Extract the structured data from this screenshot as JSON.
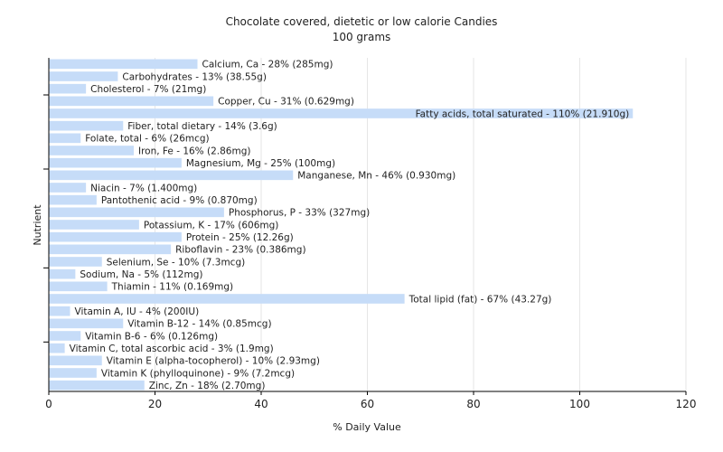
{
  "chart_data": {
    "type": "bar",
    "orientation": "horizontal",
    "title": "Chocolate covered, dietetic or low calorie Candies",
    "subtitle": "100 grams",
    "xlabel": "% Daily Value",
    "ylabel": "Nutrient",
    "xlim": [
      0,
      120
    ],
    "xticks": [
      "0",
      "20",
      "40",
      "60",
      "80",
      "100",
      "120"
    ],
    "grid": true,
    "colors": {
      "bar": "#c6dcf8",
      "grid": "#e6e6e6",
      "axis": "#000000"
    },
    "categories": [
      "Calcium, Ca",
      "Carbohydrates",
      "Cholesterol",
      "Copper, Cu",
      "Fatty acids, total saturated",
      "Fiber, total dietary",
      "Folate, total",
      "Iron, Fe",
      "Magnesium, Mg",
      "Manganese, Mn",
      "Niacin",
      "Pantothenic acid",
      "Phosphorus, P",
      "Potassium, K",
      "Protein",
      "Riboflavin",
      "Selenium, Se",
      "Sodium, Na",
      "Thiamin",
      "Total lipid (fat)",
      "Vitamin A, IU",
      "Vitamin B-12",
      "Vitamin B-6",
      "Vitamin C, total ascorbic acid",
      "Vitamin E (alpha-tocopherol)",
      "Vitamin K (phylloquinone)",
      "Zinc, Zn"
    ],
    "values": [
      28,
      13,
      7,
      31,
      110,
      14,
      6,
      16,
      25,
      46,
      7,
      9,
      33,
      17,
      25,
      23,
      10,
      5,
      11,
      67,
      4,
      14,
      6,
      3,
      10,
      9,
      18
    ],
    "labels": [
      "Calcium, Ca - 28% (285mg)",
      "Carbohydrates - 13% (38.55g)",
      "Cholesterol - 7% (21mg)",
      "Copper, Cu - 31% (0.629mg)",
      "Fatty acids, total saturated - 110% (21.910g)",
      "Fiber, total dietary - 14% (3.6g)",
      "Folate, total - 6% (26mcg)",
      "Iron, Fe - 16% (2.86mg)",
      "Magnesium, Mg - 25% (100mg)",
      "Manganese, Mn - 46% (0.930mg)",
      "Niacin - 7% (1.400mg)",
      "Pantothenic acid - 9% (0.870mg)",
      "Phosphorus, P - 33% (327mg)",
      "Potassium, K - 17% (606mg)",
      "Protein - 25% (12.26g)",
      "Riboflavin - 23% (0.386mg)",
      "Selenium, Se - 10% (7.3mcg)",
      "Sodium, Na - 5% (112mg)",
      "Thiamin - 11% (0.169mg)",
      "Total lipid (fat) - 67% (43.27g)",
      "Vitamin A, IU - 4% (200IU)",
      "Vitamin B-12 - 14% (0.85mcg)",
      "Vitamin B-6 - 6% (0.126mg)",
      "Vitamin C, total ascorbic acid - 3% (1.9mg)",
      "Vitamin E (alpha-tocopherol) - 10% (2.93mg)",
      "Vitamin K (phylloquinone) - 9% (7.2mcg)",
      "Zinc, Zn - 18% (2.70mg)"
    ]
  }
}
